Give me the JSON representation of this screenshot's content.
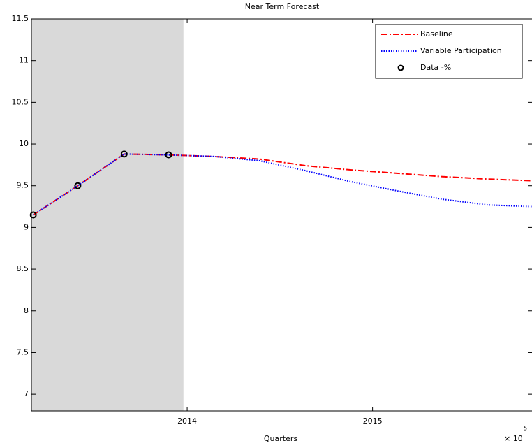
{
  "chart_data": {
    "type": "line",
    "title": "Near Term Forecast",
    "x_label": "Quarters",
    "x_multiplier": "× 10",
    "x_exponent": "5",
    "xlim": [
      2013.16,
      2015.86
    ],
    "ylim": [
      6.8,
      11.5
    ],
    "xticks": [
      2014,
      2015
    ],
    "yticks": [
      7,
      7.5,
      8,
      8.5,
      9,
      9.5,
      10,
      10.5,
      11,
      11.5
    ],
    "shade_end": 2013.98,
    "shade_color": "#d9d9d9",
    "legend": "northeast",
    "series": [
      {
        "name": "Baseline",
        "color": "#ff0000",
        "style": "dashdot",
        "x": [
          2013.17,
          2013.41,
          2013.66,
          2013.9,
          2014.15,
          2014.39,
          2014.64,
          2014.88,
          2015.13,
          2015.37,
          2015.62,
          2015.86
        ],
        "values": [
          9.15,
          9.5,
          9.88,
          9.87,
          9.85,
          9.82,
          9.74,
          9.69,
          9.65,
          9.61,
          9.58,
          9.56
        ]
      },
      {
        "name": "Variable Participation",
        "color": "#0000ff",
        "style": "dotted",
        "x": [
          2013.17,
          2013.41,
          2013.66,
          2013.9,
          2014.15,
          2014.39,
          2014.64,
          2014.88,
          2015.13,
          2015.37,
          2015.62,
          2015.86
        ],
        "values": [
          9.15,
          9.5,
          9.88,
          9.87,
          9.85,
          9.8,
          9.68,
          9.55,
          9.44,
          9.34,
          9.27,
          9.25
        ]
      },
      {
        "name": "Data -%",
        "color": "#000000",
        "style": "marker",
        "x": [
          2013.17,
          2013.41,
          2013.66,
          2013.9
        ],
        "values": [
          9.15,
          9.5,
          9.88,
          9.87
        ]
      }
    ]
  }
}
